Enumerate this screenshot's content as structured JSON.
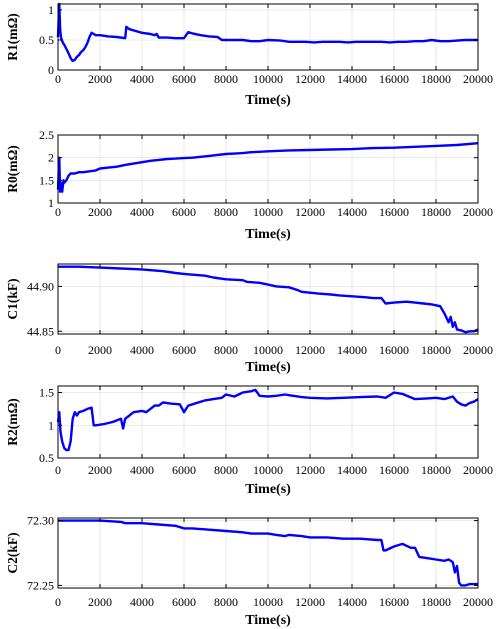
{
  "colors": {
    "line": "#0000ff",
    "axis": "#000000",
    "grid": "#dcdcdc"
  },
  "chart_data": [
    {
      "type": "line",
      "ylabel": "R1(mΩ)",
      "xlabel": "Time(s)",
      "xlim": [
        0,
        20000
      ],
      "ylim": [
        0,
        1.1
      ],
      "grid": true,
      "x_ticks": [
        "0",
        "2000",
        "4000",
        "6000",
        "8000",
        "10000",
        "12000",
        "14000",
        "16000",
        "18000",
        "20000"
      ],
      "y_ticks": [
        "0",
        "0.5",
        "1"
      ],
      "y_tick_values": [
        0,
        0.5,
        1
      ],
      "series": [
        {
          "x": [
            0,
            60,
            100,
            140,
            180,
            240,
            300,
            400,
            500,
            600,
            700,
            800,
            900,
            1000,
            1100,
            1200,
            1300,
            1400,
            1500,
            1600,
            1700,
            1800,
            2000,
            2400,
            2800,
            3200,
            3250,
            3400,
            3800,
            4000,
            4400,
            4600,
            4700,
            4800,
            5200,
            5600,
            6000,
            6200,
            6400,
            6800,
            7200,
            7600,
            7800,
            8000,
            8400,
            8800,
            9200,
            9600,
            10000,
            10600,
            11000,
            11400,
            11800,
            12200,
            12600,
            13000,
            13400,
            13800,
            14200,
            14600,
            15000,
            15400,
            15800,
            16200,
            16600,
            17000,
            17400,
            17800,
            18200,
            18600,
            19000,
            19400,
            19800,
            20000
          ],
          "y": [
            0.55,
            1.1,
            0.7,
            0.55,
            0.5,
            0.45,
            0.42,
            0.35,
            0.28,
            0.2,
            0.15,
            0.17,
            0.22,
            0.25,
            0.3,
            0.33,
            0.38,
            0.45,
            0.55,
            0.62,
            0.6,
            0.58,
            0.58,
            0.56,
            0.55,
            0.53,
            0.72,
            0.68,
            0.64,
            0.62,
            0.6,
            0.58,
            0.6,
            0.54,
            0.54,
            0.53,
            0.53,
            0.63,
            0.61,
            0.58,
            0.56,
            0.55,
            0.5,
            0.5,
            0.5,
            0.5,
            0.48,
            0.48,
            0.5,
            0.49,
            0.47,
            0.47,
            0.47,
            0.46,
            0.47,
            0.47,
            0.47,
            0.46,
            0.47,
            0.47,
            0.47,
            0.47,
            0.46,
            0.47,
            0.47,
            0.48,
            0.48,
            0.5,
            0.48,
            0.48,
            0.49,
            0.5,
            0.5,
            0.5
          ]
        }
      ]
    },
    {
      "type": "line",
      "ylabel": "R0(mΩ)",
      "xlabel": "Time(s)",
      "xlim": [
        0,
        20000
      ],
      "ylim": [
        1,
        2.5
      ],
      "grid": true,
      "x_ticks": [
        "0",
        "2000",
        "4000",
        "6000",
        "8000",
        "10000",
        "12000",
        "14000",
        "16000",
        "18000",
        "20000"
      ],
      "y_ticks": [
        "1",
        "1.5",
        "2",
        "2.5"
      ],
      "y_tick_values": [
        1,
        1.5,
        2,
        2.5
      ],
      "series": [
        {
          "x": [
            0,
            60,
            100,
            140,
            200,
            260,
            300,
            400,
            500,
            600,
            800,
            1000,
            1200,
            1500,
            1800,
            2000,
            2400,
            2800,
            3200,
            3600,
            4000,
            4400,
            4800,
            5200,
            5600,
            6000,
            6400,
            6800,
            7200,
            7600,
            8000,
            8400,
            8800,
            9200,
            9600,
            10000,
            11000,
            12000,
            13000,
            14000,
            15000,
            16000,
            17000,
            18000,
            19000,
            20000
          ],
          "y": [
            1.3,
            2.0,
            1.25,
            1.45,
            1.25,
            1.5,
            1.45,
            1.5,
            1.6,
            1.65,
            1.65,
            1.68,
            1.68,
            1.7,
            1.72,
            1.76,
            1.78,
            1.8,
            1.84,
            1.87,
            1.9,
            1.93,
            1.95,
            1.97,
            1.98,
            1.99,
            2.0,
            2.02,
            2.04,
            2.06,
            2.08,
            2.09,
            2.1,
            2.12,
            2.13,
            2.14,
            2.16,
            2.17,
            2.18,
            2.19,
            2.21,
            2.22,
            2.24,
            2.26,
            2.28,
            2.32
          ]
        }
      ]
    },
    {
      "type": "line",
      "ylabel": "C1(kF)",
      "xlabel": "Time(s)",
      "xlim": [
        0,
        20000
      ],
      "ylim": [
        44.847,
        44.925
      ],
      "grid": true,
      "x_ticks": [
        "0",
        "2000",
        "4000",
        "6000",
        "8000",
        "10000",
        "12000",
        "14000",
        "16000",
        "18000",
        "20000"
      ],
      "y_ticks": [
        "44.85",
        "44.90"
      ],
      "y_tick_values": [
        44.85,
        44.9
      ],
      "series": [
        {
          "x": [
            0,
            1000,
            2000,
            3000,
            4000,
            5000,
            5600,
            6000,
            7000,
            7400,
            8000,
            8800,
            9000,
            9600,
            10000,
            10400,
            11000,
            11400,
            11600,
            12000,
            12400,
            13000,
            13400,
            14000,
            14600,
            15000,
            15400,
            15600,
            16000,
            16600,
            17000,
            17400,
            17800,
            18000,
            18200,
            18400,
            18600,
            18700,
            18800,
            18900,
            19000,
            19200,
            19400,
            19600,
            19800,
            20000
          ],
          "y": [
            44.922,
            44.922,
            44.921,
            44.92,
            44.919,
            44.917,
            44.915,
            44.914,
            44.912,
            44.91,
            44.908,
            44.907,
            44.905,
            44.904,
            44.902,
            44.9,
            44.899,
            44.896,
            44.894,
            44.893,
            44.892,
            44.891,
            44.89,
            44.889,
            44.888,
            44.887,
            44.887,
            44.881,
            44.882,
            44.883,
            44.882,
            44.881,
            44.88,
            44.879,
            44.878,
            44.87,
            44.86,
            44.866,
            44.855,
            44.86,
            44.852,
            44.851,
            44.849,
            44.85,
            44.85,
            44.852
          ]
        }
      ]
    },
    {
      "type": "line",
      "ylabel": "R2(mΩ)",
      "xlabel": "Time(s)",
      "xlim": [
        0,
        20000
      ],
      "ylim": [
        0.5,
        1.6
      ],
      "grid": true,
      "x_ticks": [
        "0",
        "2000",
        "4000",
        "6000",
        "8000",
        "10000",
        "12000",
        "14000",
        "16000",
        "18000",
        "20000"
      ],
      "y_ticks": [
        "0.5",
        "1",
        "1.5"
      ],
      "y_tick_values": [
        0.5,
        1,
        1.5
      ],
      "series": [
        {
          "x": [
            0,
            60,
            120,
            200,
            300,
            400,
            500,
            600,
            700,
            800,
            900,
            1000,
            1200,
            1400,
            1600,
            1700,
            1800,
            2200,
            2600,
            3000,
            3100,
            3200,
            3400,
            3600,
            4000,
            4200,
            4400,
            4600,
            4800,
            5000,
            5400,
            5800,
            6000,
            6200,
            6400,
            7000,
            7400,
            7800,
            8000,
            8400,
            8800,
            9200,
            9400,
            9600,
            10000,
            10400,
            10800,
            11000,
            11600,
            12000,
            12800,
            13600,
            14400,
            15200,
            15600,
            16000,
            16400,
            17000,
            17600,
            18000,
            18400,
            18800,
            19000,
            19200,
            19400,
            19600,
            19800,
            20000
          ],
          "y": [
            1.05,
            1.2,
            0.9,
            0.75,
            0.65,
            0.62,
            0.62,
            0.75,
            1.1,
            1.2,
            1.15,
            1.2,
            1.22,
            1.25,
            1.27,
            1.0,
            1.0,
            1.02,
            1.05,
            1.1,
            0.95,
            1.1,
            1.15,
            1.2,
            1.22,
            1.2,
            1.25,
            1.3,
            1.3,
            1.35,
            1.33,
            1.32,
            1.2,
            1.3,
            1.32,
            1.38,
            1.4,
            1.42,
            1.47,
            1.44,
            1.5,
            1.52,
            1.54,
            1.45,
            1.44,
            1.45,
            1.47,
            1.46,
            1.43,
            1.42,
            1.41,
            1.42,
            1.43,
            1.44,
            1.42,
            1.5,
            1.48,
            1.4,
            1.41,
            1.42,
            1.4,
            1.44,
            1.36,
            1.32,
            1.3,
            1.34,
            1.36,
            1.4
          ]
        }
      ]
    },
    {
      "type": "line",
      "ylabel": "C2(kF)",
      "xlabel": "Time(s)",
      "xlim": [
        0,
        20000
      ],
      "ylim": [
        72.248,
        72.302
      ],
      "grid": true,
      "x_ticks": [
        "0",
        "2000",
        "4000",
        "6000",
        "8000",
        "10000",
        "12000",
        "14000",
        "16000",
        "18000",
        "20000"
      ],
      "y_ticks": [
        "72.25",
        "72.30"
      ],
      "y_tick_values": [
        72.25,
        72.3
      ],
      "series": [
        {
          "x": [
            0,
            1000,
            2000,
            3000,
            3200,
            4000,
            4800,
            5600,
            6000,
            6400,
            7200,
            8000,
            8800,
            9200,
            9400,
            10000,
            10400,
            10800,
            11000,
            11600,
            12000,
            12800,
            13600,
            14400,
            15200,
            15400,
            15500,
            15600,
            16000,
            16400,
            16800,
            17000,
            17200,
            17600,
            18000,
            18400,
            18600,
            18800,
            18900,
            19000,
            19100,
            19200,
            19400,
            19600,
            19800,
            20000
          ],
          "y": [
            72.3,
            72.3,
            72.3,
            72.299,
            72.298,
            72.298,
            72.297,
            72.296,
            72.294,
            72.294,
            72.293,
            72.292,
            72.291,
            72.29,
            72.29,
            72.29,
            72.289,
            72.288,
            72.289,
            72.288,
            72.287,
            72.287,
            72.286,
            72.286,
            72.285,
            72.285,
            72.277,
            72.277,
            72.28,
            72.282,
            72.279,
            72.279,
            72.272,
            72.271,
            72.27,
            72.269,
            72.27,
            72.268,
            72.26,
            72.265,
            72.252,
            72.25,
            72.25,
            72.251,
            72.251,
            72.251
          ]
        }
      ]
    }
  ]
}
